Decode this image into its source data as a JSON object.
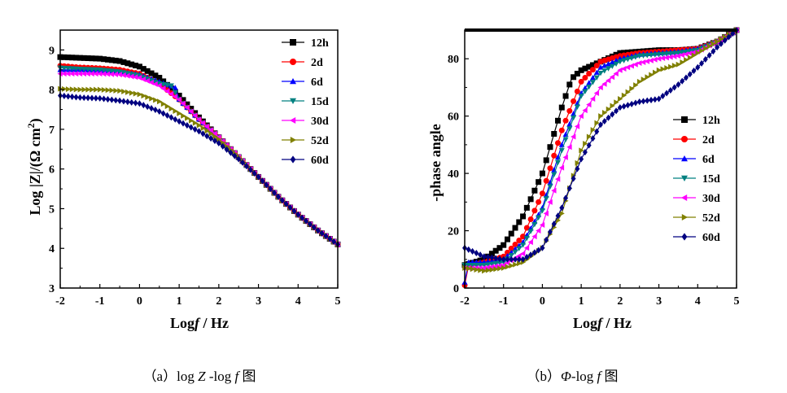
{
  "panels": [
    {
      "caption": {
        "prefix": "（a）log ",
        "italic1": "Z",
        "mid": " -log ",
        "italic2": "f",
        "suffix": " 图"
      },
      "xlabel": {
        "prefix": "Log",
        "italic": "f",
        "suffix": " / Hz"
      },
      "ylabel": {
        "text": "Log |Z|/(Ω cm",
        "sup": "2",
        "close": ")"
      }
    },
    {
      "caption": {
        "prefix": "（b）",
        "italic1": "Φ",
        "mid": "-log ",
        "italic2": "f",
        "suffix": " 图"
      },
      "xlabel": {
        "prefix": "Log",
        "italic": "f",
        "suffix": " / Hz"
      },
      "ylabel": {
        "text": "-phase angle"
      }
    }
  ],
  "colors": {
    "12h": "#000000",
    "2d": "#ff0000",
    "6d": "#0000ff",
    "15d": "#008080",
    "30d": "#ff00ff",
    "52d": "#808000",
    "60d": "#000080"
  },
  "chart_data": [
    {
      "type": "line",
      "xlabel": "Log f / Hz",
      "ylabel": "Log |Z|/(Ω cm2)",
      "xlim": [
        -2,
        5
      ],
      "ylim": [
        3,
        9.5
      ],
      "xticks": [
        -2,
        -1,
        0,
        1,
        2,
        3,
        4,
        5
      ],
      "yticks": [
        3,
        4,
        5,
        6,
        7,
        8,
        9
      ],
      "legend_position": "top-right",
      "series": [
        {
          "name": "12h",
          "marker": "square",
          "points": [
            [
              -2,
              8.82
            ],
            [
              -1.5,
              8.8
            ],
            [
              -1,
              8.78
            ],
            [
              -0.5,
              8.72
            ],
            [
              0,
              8.58
            ],
            [
              0.5,
              8.3
            ],
            [
              1,
              7.85
            ],
            [
              1.5,
              7.3
            ],
            [
              2,
              6.8
            ],
            [
              2.5,
              6.3
            ],
            [
              3,
              5.8
            ],
            [
              3.5,
              5.3
            ],
            [
              4,
              4.85
            ],
            [
              4.5,
              4.45
            ],
            [
              5,
              4.1
            ]
          ]
        },
        {
          "name": "2d",
          "marker": "circle",
          "points": [
            [
              -2,
              8.6
            ],
            [
              -1.5,
              8.56
            ],
            [
              -1,
              8.54
            ],
            [
              -0.5,
              8.5
            ],
            [
              0,
              8.4
            ],
            [
              0.5,
              8.15
            ],
            [
              1,
              7.75
            ],
            [
              1.5,
              7.25
            ],
            [
              2,
              6.8
            ],
            [
              2.5,
              6.3
            ],
            [
              3,
              5.8
            ],
            [
              3.5,
              5.3
            ],
            [
              4,
              4.85
            ],
            [
              4.5,
              4.45
            ],
            [
              5,
              4.1
            ]
          ]
        },
        {
          "name": "6d",
          "marker": "triangle-up",
          "points": [
            [
              -2,
              8.5
            ],
            [
              -1.5,
              8.5
            ],
            [
              -1,
              8.48
            ],
            [
              -0.5,
              8.45
            ],
            [
              0,
              8.38
            ],
            [
              0.5,
              8.2
            ],
            [
              0.9,
              8.05
            ],
            [
              1,
              7.75
            ],
            [
              1.5,
              7.25
            ],
            [
              2,
              6.8
            ],
            [
              2.5,
              6.3
            ],
            [
              3,
              5.8
            ],
            [
              3.5,
              5.3
            ],
            [
              4,
              4.85
            ],
            [
              4.5,
              4.45
            ],
            [
              5,
              4.1
            ]
          ]
        },
        {
          "name": "15d",
          "marker": "triangle-down",
          "points": [
            [
              -2,
              8.55
            ],
            [
              -1.5,
              8.52
            ],
            [
              -1,
              8.5
            ],
            [
              -0.5,
              8.45
            ],
            [
              0,
              8.35
            ],
            [
              0.5,
              8.15
            ],
            [
              0.8,
              8.1
            ],
            [
              1,
              7.75
            ],
            [
              1.5,
              7.25
            ],
            [
              2,
              6.8
            ],
            [
              2.5,
              6.3
            ],
            [
              3,
              5.8
            ],
            [
              3.5,
              5.3
            ],
            [
              4,
              4.85
            ],
            [
              4.5,
              4.45
            ],
            [
              5,
              4.1
            ]
          ]
        },
        {
          "name": "30d",
          "marker": "triangle-left",
          "points": [
            [
              -2,
              8.4
            ],
            [
              -1.5,
              8.4
            ],
            [
              -1,
              8.4
            ],
            [
              -0.5,
              8.38
            ],
            [
              0,
              8.3
            ],
            [
              0.5,
              8.1
            ],
            [
              1,
              7.75
            ],
            [
              1.5,
              7.25
            ],
            [
              2,
              6.8
            ],
            [
              2.5,
              6.3
            ],
            [
              3,
              5.8
            ],
            [
              3.5,
              5.3
            ],
            [
              4,
              4.85
            ],
            [
              4.5,
              4.45
            ],
            [
              5,
              4.1
            ]
          ]
        },
        {
          "name": "52d",
          "marker": "triangle-right",
          "points": [
            [
              -2,
              8.02
            ],
            [
              -1.5,
              8.0
            ],
            [
              -1,
              8.0
            ],
            [
              -0.5,
              7.97
            ],
            [
              0,
              7.88
            ],
            [
              0.5,
              7.7
            ],
            [
              1,
              7.4
            ],
            [
              1.5,
              7.1
            ],
            [
              2,
              6.75
            ],
            [
              2.5,
              6.3
            ],
            [
              3,
              5.8
            ],
            [
              3.5,
              5.3
            ],
            [
              4,
              4.85
            ],
            [
              4.5,
              4.45
            ],
            [
              5,
              4.1
            ]
          ]
        },
        {
          "name": "60d",
          "marker": "diamond",
          "points": [
            [
              -2,
              7.85
            ],
            [
              -1.5,
              7.8
            ],
            [
              -1,
              7.78
            ],
            [
              -0.5,
              7.72
            ],
            [
              0,
              7.65
            ],
            [
              0.5,
              7.45
            ],
            [
              1,
              7.2
            ],
            [
              1.5,
              6.95
            ],
            [
              2,
              6.65
            ],
            [
              2.5,
              6.25
            ],
            [
              3,
              5.8
            ],
            [
              3.5,
              5.3
            ],
            [
              4,
              4.85
            ],
            [
              4.5,
              4.45
            ],
            [
              5,
              4.1
            ]
          ]
        }
      ]
    },
    {
      "type": "line",
      "xlabel": "Log f / Hz",
      "ylabel": "-phase angle",
      "xlim": [
        -2,
        5
      ],
      "ylim": [
        0,
        90
      ],
      "xticks": [
        -2,
        -1,
        0,
        1,
        2,
        3,
        4,
        5
      ],
      "yticks": [
        0,
        20,
        40,
        60,
        80
      ],
      "legend_position": "center-left",
      "series": [
        {
          "name": "12h",
          "marker": "square",
          "points": [
            [
              -2,
              8
            ],
            [
              -1.5,
              10
            ],
            [
              -1,
              15
            ],
            [
              -0.5,
              25
            ],
            [
              0,
              40
            ],
            [
              0.5,
              63
            ],
            [
              0.75,
              73
            ],
            [
              1,
              76
            ],
            [
              1.5,
              79
            ],
            [
              2,
              82
            ],
            [
              2.5,
              82.5
            ],
            [
              3,
              83
            ],
            [
              3.5,
              83
            ],
            [
              4,
              83.5
            ],
            [
              4.5,
              86
            ],
            [
              5,
              90
            ]
          ]
        },
        {
          "name": "2d",
          "marker": "circle",
          "points": [
            [
              -2,
              1
            ],
            [
              -1.9,
              8
            ],
            [
              -1.5,
              9
            ],
            [
              -1,
              11
            ],
            [
              -0.5,
              18
            ],
            [
              0,
              33
            ],
            [
              0.5,
              55
            ],
            [
              1,
              72
            ],
            [
              1.5,
              79
            ],
            [
              2,
              81
            ],
            [
              2.5,
              82
            ],
            [
              3,
              82.5
            ],
            [
              3.5,
              83
            ],
            [
              4,
              83.5
            ],
            [
              4.5,
              86
            ],
            [
              5,
              90
            ]
          ]
        },
        {
          "name": "6d",
          "marker": "triangle-up",
          "points": [
            [
              -2,
              2
            ],
            [
              -1.9,
              9
            ],
            [
              -1.5,
              9
            ],
            [
              -1,
              10
            ],
            [
              -0.5,
              16
            ],
            [
              0,
              28
            ],
            [
              0.5,
              50
            ],
            [
              1,
              68
            ],
            [
              1.5,
              77
            ],
            [
              2,
              80
            ],
            [
              2.5,
              81.5
            ],
            [
              3,
              82
            ],
            [
              3.5,
              82.5
            ],
            [
              4,
              83.5
            ],
            [
              4.5,
              86
            ],
            [
              5,
              90
            ]
          ]
        },
        {
          "name": "15d",
          "marker": "triangle-down",
          "points": [
            [
              -2,
              8
            ],
            [
              -1.5,
              8
            ],
            [
              -1,
              9
            ],
            [
              -0.5,
              15
            ],
            [
              0,
              27
            ],
            [
              0.5,
              48
            ],
            [
              1,
              67
            ],
            [
              1.5,
              75
            ],
            [
              2,
              79
            ],
            [
              2.5,
              81
            ],
            [
              3,
              81.5
            ],
            [
              3.5,
              82
            ],
            [
              4,
              83
            ],
            [
              4.5,
              86
            ],
            [
              5,
              90
            ]
          ]
        },
        {
          "name": "30d",
          "marker": "triangle-left",
          "points": [
            [
              -2,
              7
            ],
            [
              -1.5,
              7
            ],
            [
              -1,
              8
            ],
            [
              -0.5,
              12
            ],
            [
              0,
              22
            ],
            [
              0.5,
              42
            ],
            [
              1,
              60
            ],
            [
              1.5,
              70
            ],
            [
              2,
              76
            ],
            [
              2.5,
              78.5
            ],
            [
              3,
              80
            ],
            [
              3.5,
              81
            ],
            [
              4,
              82.5
            ],
            [
              4.5,
              86
            ],
            [
              5,
              90
            ]
          ]
        },
        {
          "name": "52d",
          "marker": "triangle-right",
          "points": [
            [
              -2,
              7
            ],
            [
              -1.5,
              6
            ],
            [
              -1,
              7
            ],
            [
              -0.5,
              9
            ],
            [
              0,
              14
            ],
            [
              0.5,
              26
            ],
            [
              1,
              48
            ],
            [
              1.5,
              60
            ],
            [
              2,
              66
            ],
            [
              2.5,
              72
            ],
            [
              3,
              76
            ],
            [
              3.5,
              78
            ],
            [
              4,
              82
            ],
            [
              4.5,
              86
            ],
            [
              5,
              90
            ]
          ]
        },
        {
          "name": "60d",
          "marker": "diamond",
          "points": [
            [
              -2,
              14
            ],
            [
              -1.5,
              11
            ],
            [
              -1,
              10
            ],
            [
              -0.5,
              10
            ],
            [
              0,
              14
            ],
            [
              0.5,
              28
            ],
            [
              1,
              45
            ],
            [
              1.5,
              57
            ],
            [
              2,
              63
            ],
            [
              2.5,
              65
            ],
            [
              3,
              66
            ],
            [
              3.5,
              71
            ],
            [
              4,
              77
            ],
            [
              4.5,
              84
            ],
            [
              5,
              90
            ]
          ]
        }
      ]
    }
  ]
}
